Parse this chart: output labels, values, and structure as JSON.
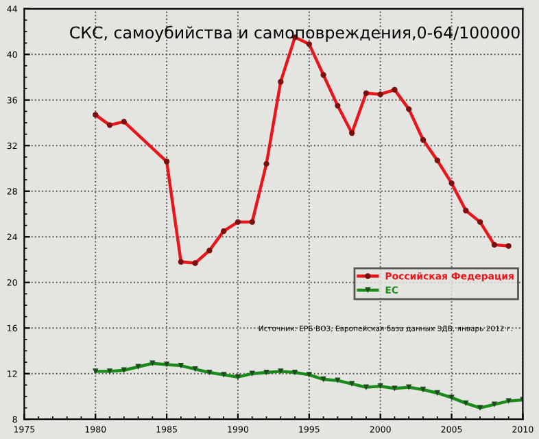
{
  "chart_data": {
    "type": "line",
    "title": "СКС, самоубийства и самоповреждения,0-64/100000",
    "xlim": [
      1975,
      2010
    ],
    "xticks": [
      1975,
      1980,
      1985,
      1990,
      1995,
      2000,
      2005,
      2010
    ],
    "ylim": [
      8,
      44
    ],
    "yticks": [
      8,
      12,
      16,
      20,
      24,
      28,
      32,
      36,
      40,
      44
    ],
    "grid": true,
    "legend": "right",
    "line_style": "solid",
    "annotations": [
      "Источник: ЕРБ ВОЗ, Европейская база данных ЗДВ, январь 2012 г."
    ],
    "series": [
      {
        "name": "Российская Федерация",
        "color": "#e8161b",
        "marker": "circle",
        "x": [
          1980,
          1981,
          1982,
          1985,
          1986,
          1987,
          1988,
          1989,
          1990,
          1991,
          1992,
          1993,
          1994,
          1995,
          1996,
          1997,
          1998,
          1999,
          2000,
          2001,
          2002,
          2003,
          2004,
          2005,
          2006,
          2007,
          2008,
          2009
        ],
        "values": [
          34.7,
          33.8,
          34.1,
          30.6,
          21.8,
          21.7,
          22.8,
          24.5,
          25.3,
          25.3,
          30.4,
          37.6,
          41.5,
          40.9,
          38.2,
          35.5,
          33.1,
          36.6,
          36.5,
          36.9,
          35.2,
          32.5,
          30.7,
          28.7,
          26.3,
          25.3,
          23.3,
          23.2
        ]
      },
      {
        "name": "ЕС",
        "color": "#1a8a1a",
        "marker": "triangle",
        "x": [
          1980,
          1981,
          1982,
          1983,
          1984,
          1985,
          1986,
          1987,
          1988,
          1989,
          1990,
          1991,
          1992,
          1993,
          1994,
          1995,
          1996,
          1997,
          1998,
          1999,
          2000,
          2001,
          2002,
          2003,
          2004,
          2005,
          2006,
          2007,
          2008,
          2009,
          2010
        ],
        "values": [
          12.2,
          12.2,
          12.3,
          12.6,
          12.9,
          12.8,
          12.7,
          12.4,
          12.1,
          11.9,
          11.7,
          12.0,
          12.1,
          12.2,
          12.1,
          11.9,
          11.5,
          11.4,
          11.1,
          10.8,
          10.9,
          10.7,
          10.8,
          10.6,
          10.3,
          9.9,
          9.4,
          9.0,
          9.3,
          9.6,
          9.7
        ]
      }
    ]
  }
}
